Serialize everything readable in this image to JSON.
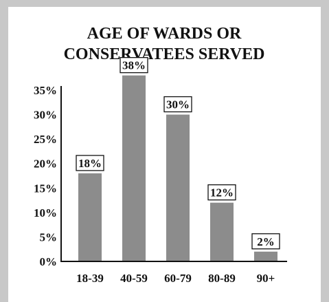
{
  "chart_data": {
    "type": "bar",
    "title_lines": [
      "AGE OF WARDS OR",
      "CONSERVATEES SERVED"
    ],
    "categories": [
      "18-39",
      "40-59",
      "60-79",
      "80-89",
      "90+"
    ],
    "values": [
      18,
      38,
      30,
      12,
      2
    ],
    "data_labels": [
      "18%",
      "38%",
      "30%",
      "12%",
      "2%"
    ],
    "y_ticks": [
      0,
      5,
      10,
      15,
      20,
      25,
      30,
      35
    ],
    "y_tick_labels": [
      "0%",
      "5%",
      "10%",
      "15%",
      "20%",
      "25%",
      "30%",
      "35%"
    ],
    "ylim": [
      0,
      38
    ],
    "grid": false,
    "legend": "none",
    "bar_color": "#8c8c8c",
    "frame_color": "#c8c8c8"
  }
}
